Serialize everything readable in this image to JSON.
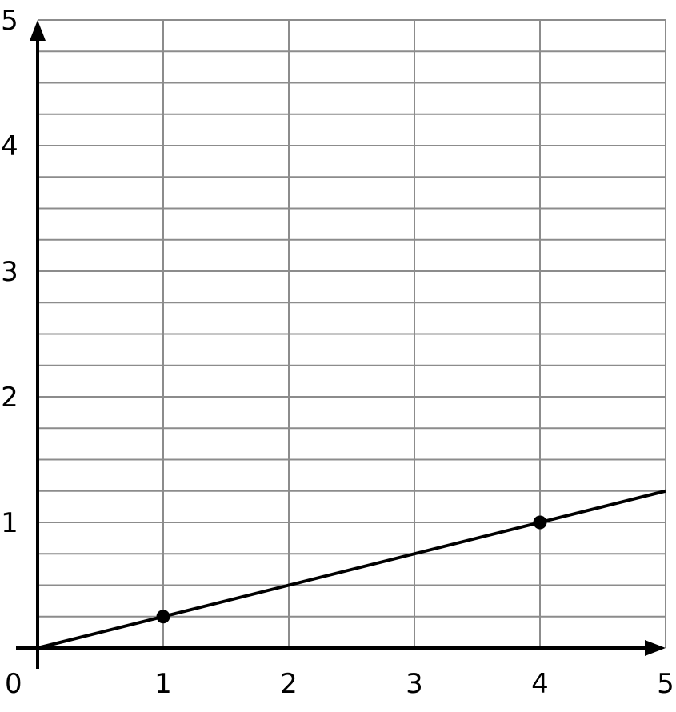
{
  "chart_data": {
    "type": "line",
    "title": "",
    "xlabel": "",
    "ylabel": "",
    "xlim": [
      0,
      5
    ],
    "ylim": [
      0,
      5
    ],
    "grid": true,
    "x_grid_step": 1,
    "y_grid_step": 0.25,
    "x_ticks": [
      "1",
      "2",
      "3",
      "4",
      "5"
    ],
    "y_ticks": [
      "1",
      "2",
      "3",
      "4",
      "5"
    ],
    "origin_label": "0",
    "series": [
      {
        "x": [
          0,
          5
        ],
        "y": [
          0,
          1.25
        ]
      }
    ],
    "points": [
      {
        "x": 1,
        "y": 0.25
      },
      {
        "x": 4,
        "y": 1
      }
    ],
    "colors": {
      "grid": "#8c8c8c",
      "axis": "#000000",
      "line": "#000000",
      "point": "#000000"
    }
  }
}
